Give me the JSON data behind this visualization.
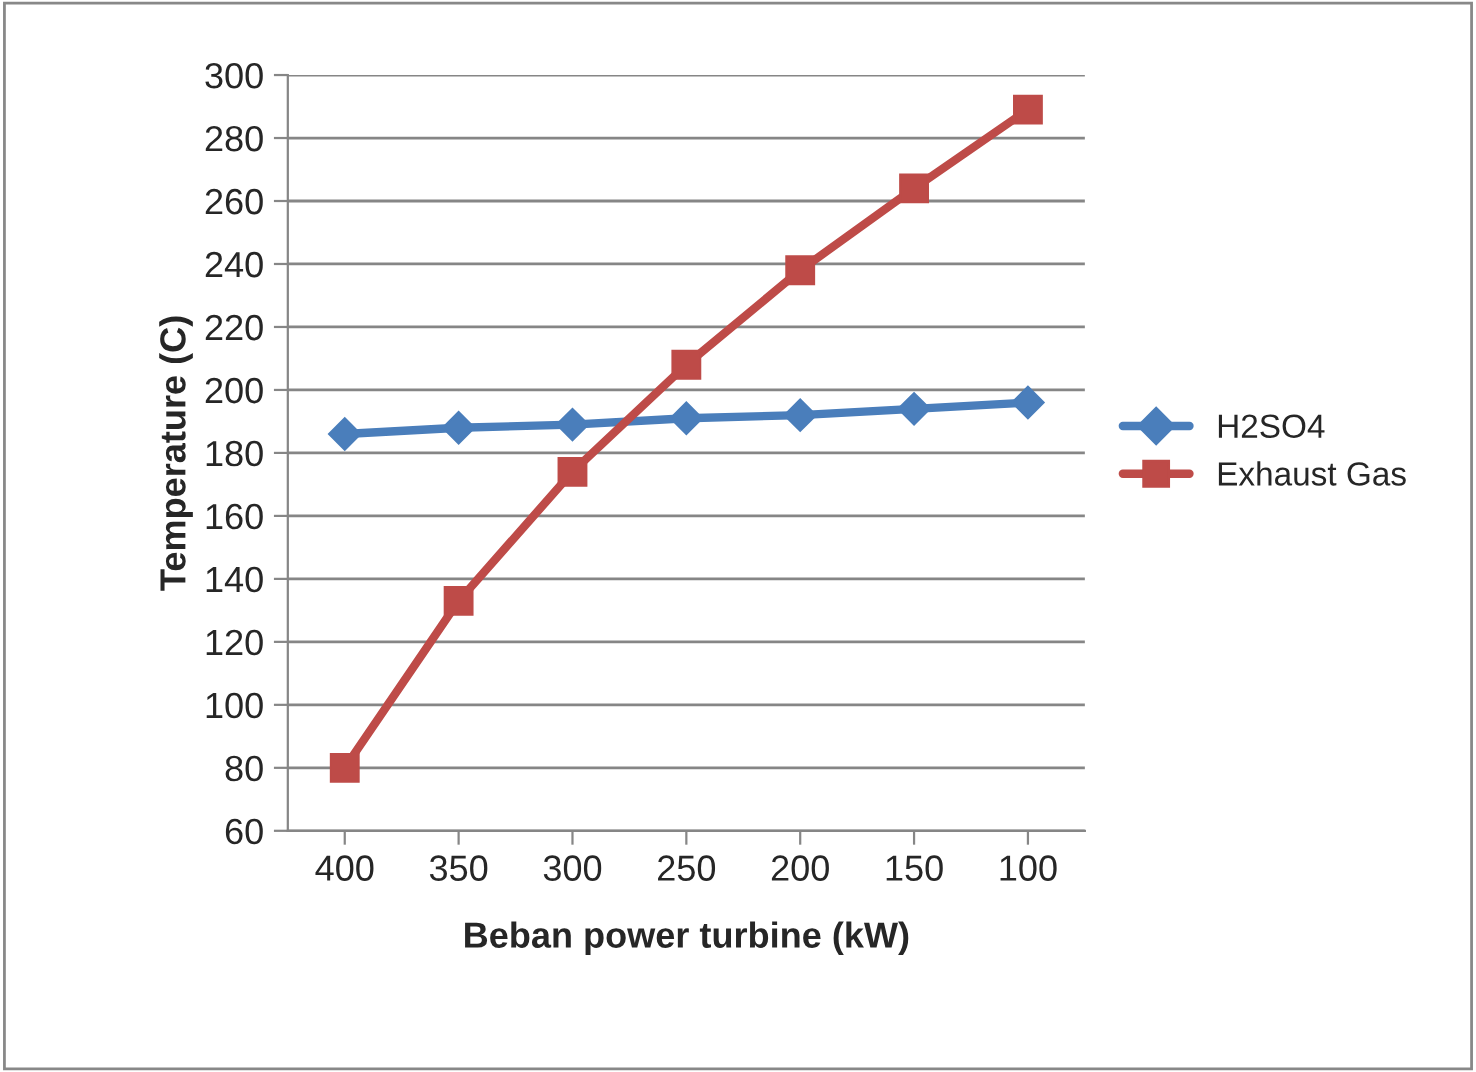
{
  "chart_data": {
    "type": "line",
    "xlabel": "Beban power turbine (kW)",
    "ylabel": "Temperature (C)",
    "categories": [
      "400",
      "350",
      "300",
      "250",
      "200",
      "150",
      "100"
    ],
    "series": [
      {
        "name": "H2SO4",
        "color": "#4a7ebb",
        "marker": "diamond",
        "values": [
          186,
          188,
          189,
          191,
          192,
          194,
          196
        ]
      },
      {
        "name": "Exhaust Gas",
        "color": "#be4b48",
        "marker": "square",
        "values": [
          80,
          133,
          174,
          208,
          238,
          264,
          289
        ]
      }
    ],
    "ylim": [
      60,
      300
    ],
    "yticks": [
      60,
      80,
      100,
      120,
      140,
      160,
      180,
      200,
      220,
      240,
      260,
      280,
      300
    ],
    "grid": "y",
    "legend": "right",
    "line_style": "solid"
  }
}
